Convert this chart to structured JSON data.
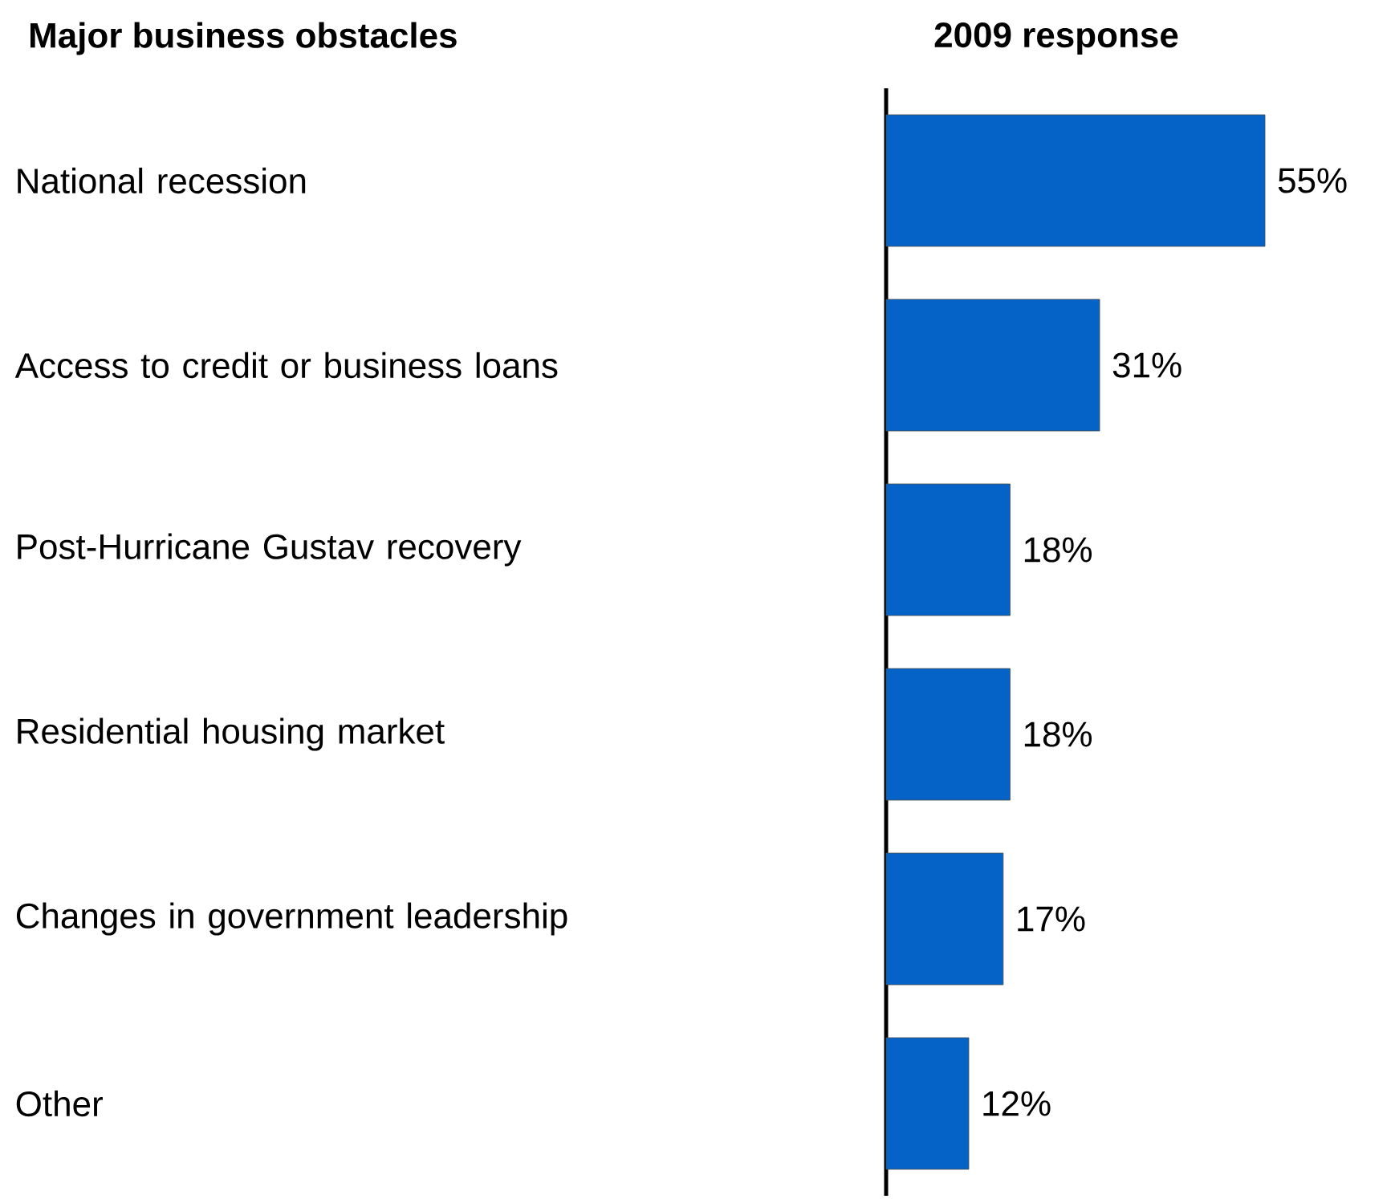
{
  "chart_data": {
    "type": "bar",
    "orientation": "horizontal",
    "title": "2009 response",
    "ylabel": "Major business obstacles",
    "categories": [
      "National recession",
      "Access to credit or business loans",
      "Post-Hurricane Gustav recovery",
      "Residential housing market",
      "Changes in government leadership",
      "Other"
    ],
    "values": [
      55,
      31,
      18,
      18,
      17,
      12
    ],
    "value_labels": [
      "55%",
      "31%",
      "18%",
      "18%",
      "17%",
      "12%"
    ],
    "color": "#0563c8"
  }
}
